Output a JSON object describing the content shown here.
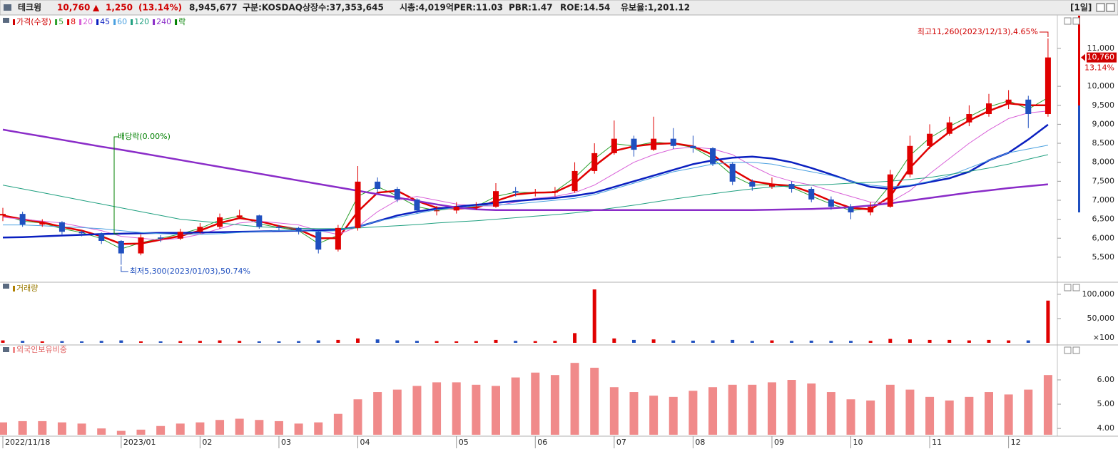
{
  "header": {
    "name": "테크윙",
    "price": "10,760",
    "arrow": "▲",
    "change": "1,250",
    "change_pct": "(13.14%)",
    "volume": "8,945,677",
    "market": "구분:KOSDAQ",
    "shares": "상장수:37,353,645",
    "cap": "시총:4,019억",
    "per": "PER:11.03",
    "pbr": "PBR:1.47",
    "roe": "ROE:14.54",
    "reserve": "유보율:1,201.12",
    "period": "[1일]"
  },
  "chart_data": [
    {
      "type": "candlestick",
      "candle_name": "가격(수정)",
      "candle_color": "#d00000",
      "up_color": "#e00000",
      "down_color": "#1f4fbf",
      "ex_div_legend": "락",
      "ex_div_color": "#008000",
      "categories": [
        "2022/11/18",
        null,
        null,
        null,
        null,
        null,
        "2023/01",
        null,
        null,
        null,
        "02",
        null,
        null,
        null,
        "03",
        null,
        null,
        null,
        "04",
        null,
        null,
        null,
        null,
        "05",
        null,
        null,
        null,
        "06",
        null,
        null,
        null,
        "07",
        null,
        null,
        null,
        "08",
        null,
        null,
        null,
        "09",
        null,
        null,
        null,
        "10",
        null,
        null,
        null,
        "11",
        null,
        null,
        null,
        "12",
        null,
        null
      ],
      "open": [
        6600,
        6640,
        6360,
        6420,
        6170,
        6130,
        5930,
        5600,
        6020,
        5990,
        6170,
        6300,
        6550,
        6600,
        6300,
        6270,
        6170,
        5700,
        6270,
        7490,
        7300,
        7020,
        6730,
        6730,
        6830,
        6830,
        7240,
        7200,
        7200,
        7240,
        7770,
        8240,
        8620,
        8330,
        8620,
        8430,
        8370,
        7960,
        7490,
        7360,
        7430,
        7300,
        7020,
        6830,
        6680,
        6830,
        7680,
        8430,
        8750,
        9050,
        9270,
        9550,
        9650,
        9270
      ],
      "high": [
        6800,
        6700,
        6500,
        6450,
        6200,
        6150,
        5950,
        6100,
        6080,
        6250,
        6400,
        6650,
        6750,
        6620,
        6350,
        6300,
        6200,
        6350,
        7900,
        7600,
        7350,
        7050,
        6850,
        6950,
        6950,
        7450,
        7350,
        7300,
        7350,
        8000,
        8500,
        9100,
        8700,
        9200,
        8900,
        8700,
        8400,
        8000,
        7550,
        7600,
        7500,
        7350,
        7100,
        6900,
        6950,
        7800,
        8700,
        9000,
        9200,
        9500,
        9800,
        9900,
        9750,
        11260
      ],
      "low": [
        6450,
        6300,
        6300,
        6100,
        6050,
        5850,
        5300,
        5550,
        5900,
        5950,
        6120,
        6250,
        6500,
        6250,
        6200,
        6100,
        5600,
        5650,
        6200,
        7200,
        6950,
        6650,
        6600,
        6650,
        6750,
        6800,
        7100,
        7100,
        7100,
        7200,
        7700,
        8200,
        8150,
        8300,
        8350,
        8250,
        7900,
        7400,
        7250,
        7300,
        7200,
        6950,
        6750,
        6500,
        6600,
        6800,
        7600,
        8350,
        8700,
        8950,
        9200,
        9400,
        8900,
        9200
      ],
      "close": [
        6640,
        6360,
        6420,
        6170,
        6130,
        5930,
        5600,
        6020,
        5990,
        6170,
        6300,
        6550,
        6600,
        6300,
        6270,
        6170,
        5700,
        6270,
        7490,
        7300,
        7020,
        6730,
        6730,
        6830,
        6830,
        7240,
        7200,
        7200,
        7240,
        7770,
        8240,
        8620,
        8330,
        8620,
        8430,
        8370,
        7960,
        7490,
        7360,
        7430,
        7300,
        7020,
        6830,
        6680,
        6830,
        7680,
        8430,
        8750,
        9050,
        9270,
        9550,
        9650,
        9270,
        10760
      ],
      "series": [
        {
          "name": "5",
          "color": "#2ca02c",
          "width": 1,
          "values": [
            6620,
            6450,
            6400,
            6250,
            6150,
            5990,
            5720,
            5880,
            6000,
            6110,
            6260,
            6480,
            6580,
            6380,
            6280,
            6200,
            5860,
            6080,
            7100,
            7360,
            7110,
            6830,
            6730,
            6800,
            6830,
            7100,
            7210,
            7200,
            7230,
            7600,
            8090,
            8490,
            8430,
            8530,
            8490,
            8390,
            8100,
            7650,
            7400,
            7410,
            7340,
            7110,
            6900,
            6730,
            6780,
            7400,
            8180,
            8640,
            8950,
            9200,
            9460,
            9620,
            9400,
            9700
          ]
        },
        {
          "name": "8",
          "color": "#e00000",
          "width": 2.5,
          "values": [
            6600,
            6500,
            6420,
            6300,
            6200,
            6050,
            5850,
            5860,
            5960,
            6060,
            6200,
            6400,
            6530,
            6450,
            6320,
            6230,
            6000,
            6000,
            6700,
            7200,
            7250,
            6980,
            6800,
            6780,
            6800,
            6980,
            7150,
            7200,
            7210,
            7450,
            7900,
            8300,
            8420,
            8480,
            8500,
            8420,
            8200,
            7800,
            7500,
            7420,
            7380,
            7200,
            6980,
            6800,
            6760,
            7100,
            7850,
            8400,
            8800,
            9100,
            9350,
            9550,
            9500,
            9500
          ]
        },
        {
          "name": "20",
          "color": "#d860d8",
          "width": 1,
          "values": [
            6550,
            6500,
            6450,
            6400,
            6300,
            6200,
            6050,
            6000,
            5950,
            6000,
            6100,
            6250,
            6400,
            6450,
            6400,
            6350,
            6200,
            6100,
            6300,
            6700,
            7000,
            7100,
            7000,
            6900,
            6850,
            6850,
            6950,
            7050,
            7100,
            7200,
            7400,
            7700,
            8000,
            8200,
            8350,
            8400,
            8350,
            8200,
            7900,
            7650,
            7500,
            7400,
            7250,
            7100,
            6950,
            6950,
            7250,
            7700,
            8100,
            8500,
            8850,
            9150,
            9300,
            9350
          ]
        },
        {
          "name": "45",
          "color": "#0a1fc0",
          "width": 2.5,
          "values": [
            6020,
            6030,
            6050,
            6070,
            6090,
            6110,
            6120,
            6130,
            6140,
            6140,
            6150,
            6160,
            6170,
            6180,
            6190,
            6200,
            6210,
            6220,
            6300,
            6450,
            6600,
            6700,
            6780,
            6830,
            6880,
            6930,
            6980,
            7020,
            7060,
            7120,
            7200,
            7350,
            7500,
            7650,
            7800,
            7950,
            8050,
            8120,
            8150,
            8100,
            8000,
            7850,
            7680,
            7500,
            7350,
            7300,
            7380,
            7480,
            7580,
            7750,
            8050,
            8250,
            8600,
            8990
          ]
        },
        {
          "name": "60",
          "color": "#4aa0e0",
          "width": 1,
          "values": [
            6350,
            6350,
            6330,
            6300,
            6280,
            6250,
            6200,
            6150,
            6120,
            6100,
            6100,
            6120,
            6150,
            6180,
            6200,
            6200,
            6180,
            6200,
            6300,
            6450,
            6550,
            6650,
            6750,
            6800,
            6850,
            6880,
            6900,
            6950,
            7000,
            7050,
            7150,
            7300,
            7450,
            7600,
            7750,
            7850,
            7950,
            8000,
            8000,
            7950,
            7850,
            7750,
            7650,
            7500,
            7400,
            7350,
            7400,
            7500,
            7650,
            7850,
            8050,
            8250,
            8350,
            8450
          ]
        },
        {
          "name": "120",
          "color": "#20a080",
          "width": 1,
          "values": [
            7400,
            7300,
            7200,
            7100,
            7000,
            6900,
            6800,
            6700,
            6600,
            6500,
            6450,
            6400,
            6350,
            6300,
            6280,
            6260,
            6250,
            6250,
            6270,
            6300,
            6330,
            6360,
            6400,
            6430,
            6460,
            6500,
            6540,
            6580,
            6620,
            6670,
            6730,
            6800,
            6870,
            6950,
            7030,
            7100,
            7170,
            7240,
            7300,
            7350,
            7380,
            7400,
            7420,
            7450,
            7470,
            7500,
            7550,
            7600,
            7680,
            7760,
            7850,
            7950,
            8080,
            8200
          ]
        },
        {
          "name": "240",
          "color": "#8a2cc8",
          "width": 2.5,
          "values": [
            8860,
            8770,
            8680,
            8590,
            8500,
            8410,
            8330,
            8240,
            8150,
            8060,
            7970,
            7880,
            7790,
            7700,
            7610,
            7520,
            7430,
            7340,
            7250,
            7160,
            7070,
            6980,
            6890,
            6810,
            6760,
            6740,
            6740,
            6740,
            6740,
            6740,
            6740,
            6740,
            6740,
            6740,
            6740,
            6740,
            6740,
            6740,
            6740,
            6750,
            6760,
            6770,
            6790,
            6820,
            6860,
            6920,
            6990,
            7060,
            7130,
            7200,
            7260,
            7320,
            7370,
            7420
          ]
        }
      ],
      "ylim": [
        4860,
        11860
      ],
      "yticks": [
        {
          "value": 5500,
          "label": "5,500"
        },
        {
          "value": 6000,
          "label": "6,000"
        },
        {
          "value": 6500,
          "label": "6,500"
        },
        {
          "value": 7000,
          "label": "7,000"
        },
        {
          "value": 7500,
          "label": "7,500"
        },
        {
          "value": 8000,
          "label": "8,000"
        },
        {
          "value": 8500,
          "label": "8,500"
        },
        {
          "value": 9000,
          "label": "9,000"
        },
        {
          "value": 9500,
          "label": "9,500"
        },
        {
          "value": 10000,
          "label": "10,000"
        },
        {
          "value": 11000,
          "label": "11,000"
        }
      ],
      "current_price": {
        "value": 10760,
        "label": "10,760"
      },
      "current_change": "13.14%",
      "high_note": "최고11,260(2023/12/13),4.65%",
      "low_note": "최저5,300(2023/01/03),50.74%",
      "div_note": "배당락(0.00%)"
    },
    {
      "type": "bar",
      "title": "거래량",
      "unit": "×100",
      "up_color": "#e00000",
      "down_color": "#1f4fbf",
      "values": [
        5000,
        4000,
        3000,
        3500,
        3000,
        4000,
        5000,
        3000,
        3000,
        3500,
        4000,
        5000,
        4000,
        3000,
        3000,
        3500,
        5000,
        6000,
        9000,
        7000,
        5000,
        4000,
        3500,
        3000,
        3500,
        6000,
        4000,
        3500,
        4000,
        20000,
        110000,
        9000,
        6000,
        7000,
        5000,
        4500,
        5000,
        6000,
        4000,
        5000,
        4000,
        4500,
        4000,
        4000,
        4000,
        8000,
        7000,
        6000,
        6000,
        5000,
        6000,
        5000,
        5000,
        87000
      ],
      "ylim": [
        0,
        119000
      ],
      "yticks": [
        {
          "value": 50000,
          "label": "50,000"
        },
        {
          "value": 100000,
          "label": "100,000"
        }
      ]
    },
    {
      "type": "bar",
      "title": "외국인보유비중",
      "color": "#f08a8a",
      "values": [
        4.25,
        4.3,
        4.3,
        4.25,
        4.2,
        4.0,
        3.9,
        3.95,
        4.1,
        4.2,
        4.25,
        4.35,
        4.4,
        4.35,
        4.3,
        4.2,
        4.25,
        4.6,
        5.2,
        5.5,
        5.6,
        5.75,
        5.9,
        5.9,
        5.8,
        5.75,
        6.1,
        6.3,
        6.2,
        6.7,
        6.5,
        5.7,
        5.5,
        5.35,
        5.3,
        5.55,
        5.7,
        5.8,
        5.8,
        5.9,
        6.0,
        5.85,
        5.5,
        5.2,
        5.15,
        5.8,
        5.6,
        5.3,
        5.15,
        5.3,
        5.5,
        5.4,
        5.6,
        6.2
      ],
      "ylim": [
        3.74,
        7.38
      ],
      "yticks": [
        {
          "value": 4,
          "label": "4.00"
        },
        {
          "value": 5,
          "label": "5.00"
        },
        {
          "value": 6,
          "label": "6.00"
        }
      ]
    }
  ]
}
